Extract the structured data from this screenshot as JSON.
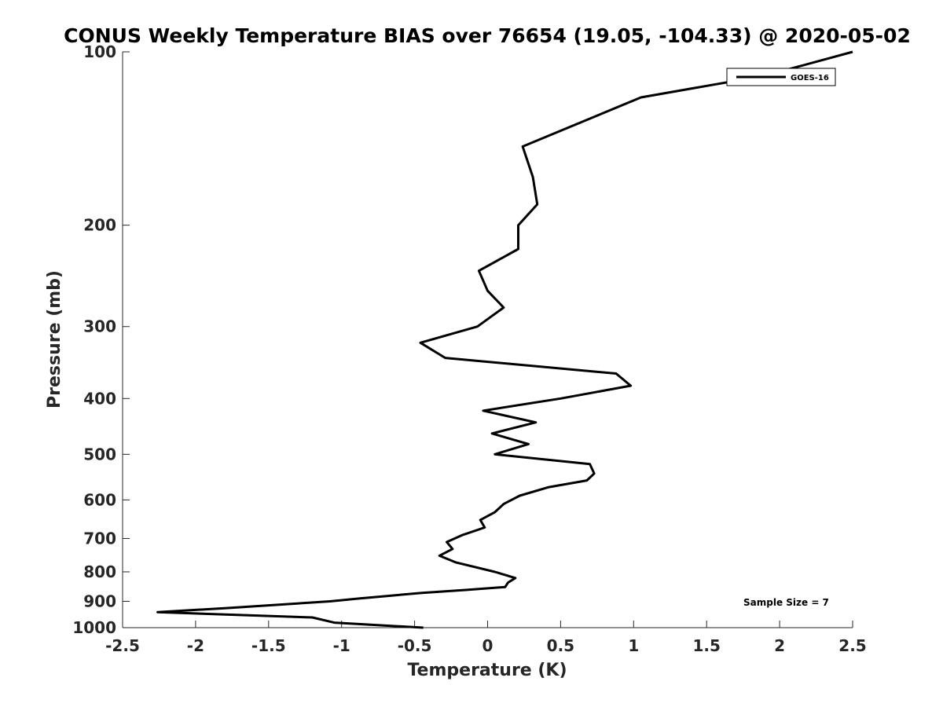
{
  "chart_data": {
    "type": "line",
    "title": "CONUS Weekly Temperature BIAS over 76654 (19.05, -104.33) @ 2020-05-02",
    "xlabel": "Temperature (K)",
    "ylabel": "Pressure (mb)",
    "xlim": [
      -2.5,
      2.5
    ],
    "ylim": [
      100,
      1000
    ],
    "yscale": "log",
    "yreversed": true,
    "grid": false,
    "legend_position": "top-right",
    "x_ticks": [
      "-2.5",
      "-2",
      "-1.5",
      "-1",
      "-0.5",
      "0",
      "0.5",
      "1",
      "1.5",
      "2",
      "2.5"
    ],
    "y_ticks": [
      "100",
      "200",
      "300",
      "400",
      "500",
      "600",
      "700",
      "800",
      "900",
      "1000"
    ],
    "annotation": "Sample Size = 7",
    "series": [
      {
        "name": "GOES-16",
        "color": "#000000",
        "points": [
          {
            "x": 2.5,
            "y": 100
          },
          {
            "x": 1.9,
            "y": 110
          },
          {
            "x": 1.05,
            "y": 120
          },
          {
            "x": 0.24,
            "y": 146
          },
          {
            "x": 0.31,
            "y": 165
          },
          {
            "x": 0.34,
            "y": 184
          },
          {
            "x": 0.21,
            "y": 200
          },
          {
            "x": 0.21,
            "y": 220
          },
          {
            "x": -0.06,
            "y": 240
          },
          {
            "x": 0.0,
            "y": 260
          },
          {
            "x": 0.11,
            "y": 278
          },
          {
            "x": -0.07,
            "y": 300
          },
          {
            "x": -0.46,
            "y": 320
          },
          {
            "x": -0.29,
            "y": 340
          },
          {
            "x": 0.88,
            "y": 362
          },
          {
            "x": 0.98,
            "y": 380
          },
          {
            "x": 0.5,
            "y": 400
          },
          {
            "x": -0.03,
            "y": 420
          },
          {
            "x": 0.33,
            "y": 440
          },
          {
            "x": 0.03,
            "y": 460
          },
          {
            "x": 0.28,
            "y": 480
          },
          {
            "x": 0.05,
            "y": 500
          },
          {
            "x": 0.7,
            "y": 520
          },
          {
            "x": 0.73,
            "y": 540
          },
          {
            "x": 0.68,
            "y": 555
          },
          {
            "x": 0.42,
            "y": 570
          },
          {
            "x": 0.22,
            "y": 590
          },
          {
            "x": 0.11,
            "y": 610
          },
          {
            "x": 0.05,
            "y": 630
          },
          {
            "x": -0.05,
            "y": 650
          },
          {
            "x": -0.02,
            "y": 670
          },
          {
            "x": -0.17,
            "y": 690
          },
          {
            "x": -0.28,
            "y": 710
          },
          {
            "x": -0.24,
            "y": 730
          },
          {
            "x": -0.33,
            "y": 750
          },
          {
            "x": -0.22,
            "y": 770
          },
          {
            "x": 0.05,
            "y": 800
          },
          {
            "x": 0.19,
            "y": 820
          },
          {
            "x": 0.14,
            "y": 835
          },
          {
            "x": 0.12,
            "y": 850
          },
          {
            "x": -0.15,
            "y": 860
          },
          {
            "x": -0.45,
            "y": 870
          },
          {
            "x": -0.88,
            "y": 890
          },
          {
            "x": -1.08,
            "y": 900
          },
          {
            "x": -1.8,
            "y": 925
          },
          {
            "x": -2.26,
            "y": 940
          },
          {
            "x": -1.2,
            "y": 960
          },
          {
            "x": -1.05,
            "y": 980
          },
          {
            "x": -0.44,
            "y": 1000
          }
        ]
      }
    ]
  }
}
